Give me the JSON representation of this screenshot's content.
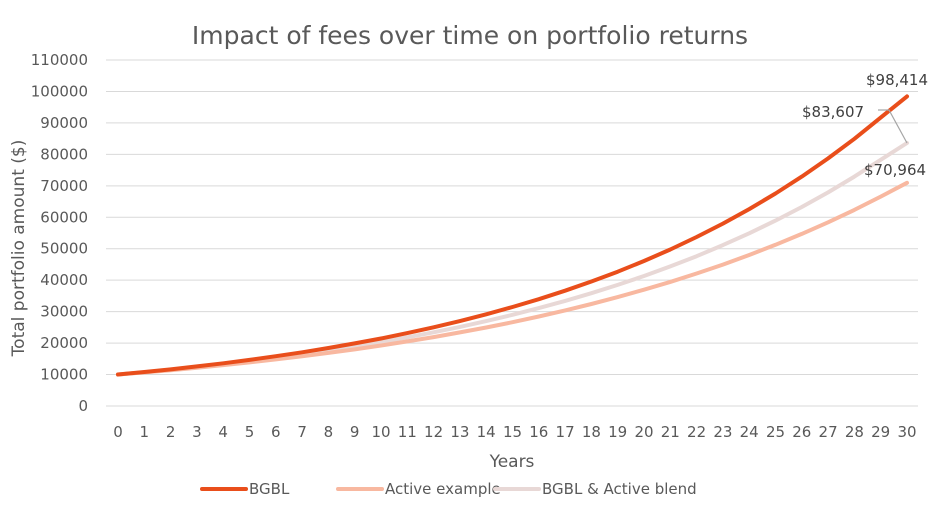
{
  "chart_data": {
    "type": "line",
    "title": "Impact of fees over time on portfolio returns",
    "xlabel": "Years",
    "ylabel": "Total portfolio amount ($)",
    "x": [
      0,
      1,
      2,
      3,
      4,
      5,
      6,
      7,
      8,
      9,
      10,
      11,
      12,
      13,
      14,
      15,
      16,
      17,
      18,
      19,
      20,
      21,
      22,
      23,
      24,
      25,
      26,
      27,
      28,
      29,
      30
    ],
    "ylim": [
      0,
      110000
    ],
    "yticks": [
      "0",
      "10000",
      "20000",
      "30000",
      "40000",
      "50000",
      "60000",
      "70000",
      "80000",
      "90000",
      "100000",
      "110000"
    ],
    "grid": true,
    "legend_position": "bottom",
    "series": [
      {
        "name": "BGBL",
        "color": "#E94E1B",
        "values": [
          10000,
          10794,
          11651,
          12576,
          13575,
          14653,
          15817,
          17073,
          18428,
          19892,
          21471,
          23176,
          25017,
          27003,
          29147,
          31462,
          33960,
          36657,
          39568,
          42710,
          46101,
          49762,
          53714,
          57979,
          62583,
          67553,
          72917,
          78707,
          84957,
          91703,
          98414
        ]
      },
      {
        "name": "Active example",
        "color": "#F8B8A0",
        "values": [
          10000,
          10676,
          11397,
          12167,
          12989,
          13866,
          14803,
          15803,
          16870,
          18010,
          19226,
          20525,
          21911,
          23391,
          24971,
          26657,
          28458,
          30380,
          32432,
          34622,
          36961,
          39457,
          42122,
          44967,
          48004,
          51246,
          54708,
          58403,
          62348,
          66559,
          70964
        ]
      },
      {
        "name": "BGBL & Active blend",
        "color": "#E8D8D6",
        "values": [
          10000,
          10736,
          11525,
          12373,
          13283,
          14259,
          15308,
          16433,
          17641,
          18939,
          20332,
          21827,
          23431,
          25155,
          27004,
          28990,
          31122,
          33410,
          35867,
          38504,
          41335,
          44374,
          47637,
          51140,
          54900,
          58937,
          63271,
          67923,
          72918,
          78280,
          83607
        ]
      }
    ],
    "annotations": [
      {
        "text": "$98,414",
        "series": "BGBL",
        "x": 30
      },
      {
        "text": "$83,607",
        "series": "BGBL & Active blend",
        "x": 30
      },
      {
        "text": "$70,964",
        "series": "Active example",
        "x": 30
      }
    ]
  }
}
